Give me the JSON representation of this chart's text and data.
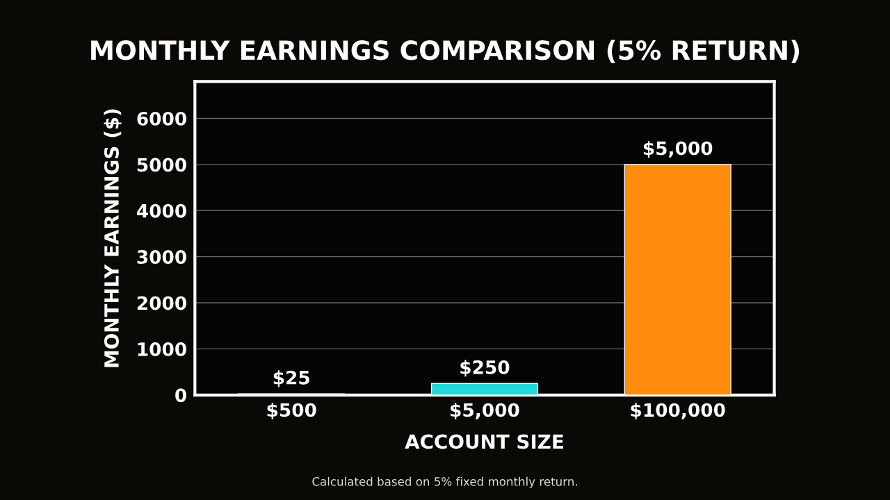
{
  "chart_data": {
    "type": "bar",
    "title": "MONTHLY EARNINGS COMPARISON (5% RETURN)",
    "xlabel": "ACCOUNT SIZE",
    "ylabel": "MONTHLY EARNINGS ($)",
    "categories": [
      "$500",
      "$5,000",
      "$100,000"
    ],
    "values": [
      25,
      250,
      5000
    ],
    "colors": [
      "#3ee03e",
      "#22d8d8",
      "#ff8c0a"
    ],
    "value_labels": [
      "$25",
      "$250",
      "$5,000"
    ],
    "ylim": [
      0,
      6800
    ],
    "yticks": [
      0,
      1000,
      2000,
      3000,
      4000,
      5000,
      6000
    ],
    "grid": "y",
    "annotations": [
      "Calculated based on 5% fixed monthly return."
    ]
  }
}
